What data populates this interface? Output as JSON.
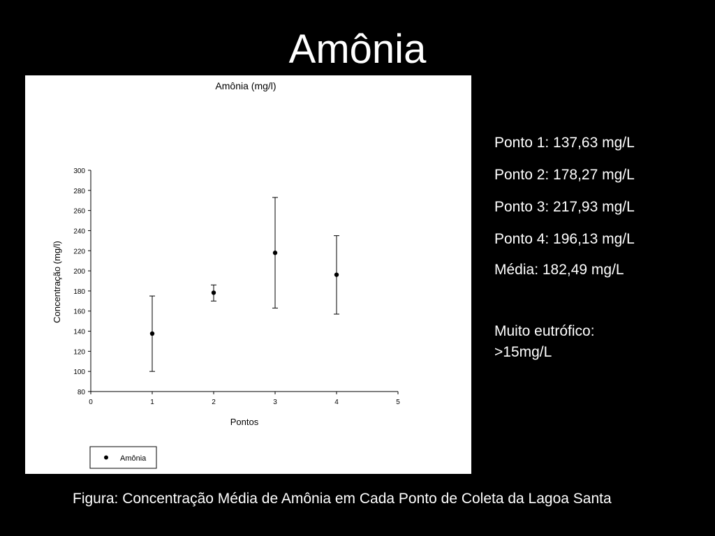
{
  "slide": {
    "title": "Amônia",
    "caption": "Figura: Concentração Média de Amônia em Cada Ponto de Coleta da Lagoa Santa"
  },
  "stats": [
    "Ponto 1: 137,63 mg/L",
    "Ponto 2: 178,27 mg/L",
    "Ponto 3: 217,93 mg/L",
    "Ponto 4: 196,13 mg/L",
    "Média: 182,49 mg/L"
  ],
  "note": {
    "line1": "Muito eutrófico:",
    "line2": ">15mg/L"
  },
  "chart_data": {
    "type": "scatter",
    "title": "Amônia (mg/l)",
    "xlabel": "Pontos",
    "ylabel": "Concentração (mg/l)",
    "xlim": [
      0,
      5
    ],
    "ylim": [
      80,
      300
    ],
    "xticks": [
      0,
      1,
      2,
      3,
      4,
      5
    ],
    "yticks": [
      80,
      100,
      120,
      140,
      160,
      180,
      200,
      220,
      240,
      260,
      280,
      300
    ],
    "grid": false,
    "legend_position": "bottom-left",
    "series": [
      {
        "name": "Amônia",
        "color": "#000000",
        "points": [
          {
            "x": 1,
            "y": 137.63,
            "y_low": 100,
            "y_high": 175
          },
          {
            "x": 2,
            "y": 178.27,
            "y_low": 170,
            "y_high": 186
          },
          {
            "x": 3,
            "y": 217.93,
            "y_low": 163,
            "y_high": 273
          },
          {
            "x": 4,
            "y": 196.13,
            "y_low": 157,
            "y_high": 235
          }
        ]
      }
    ]
  }
}
